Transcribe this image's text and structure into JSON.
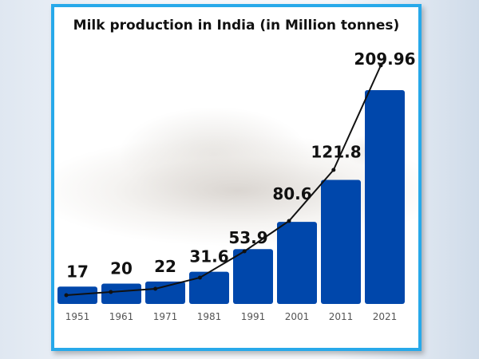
{
  "chart_data": {
    "type": "bar",
    "title": "Milk production in India (in Million tonnes)",
    "categories": [
      "1951",
      "1961",
      "1971",
      "1981",
      "1991",
      "2001",
      "2011",
      "2021"
    ],
    "values": [
      17,
      20,
      22,
      31.6,
      53.9,
      80.6,
      121.8,
      209.96
    ],
    "value_labels": [
      "17",
      "20",
      "22",
      "31.6",
      "53.9",
      "80.6",
      "121.8",
      "209.96"
    ],
    "overlay_line": true,
    "grid": false,
    "bar_color": "#0047ab",
    "line_color": "#111111",
    "frame_color": "#27a9ea"
  }
}
